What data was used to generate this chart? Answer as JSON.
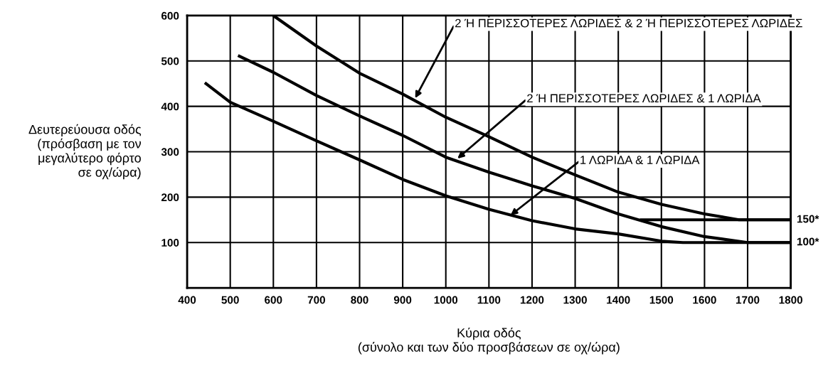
{
  "chart_data": {
    "type": "line",
    "xlabel": "Κύρια οδός\n(σύνολο και των δύο προσβάσεων σε οχ/ώρα)",
    "ylabel": "Δευτερεύουσα οδός\n(πρόσβαση με τον\nμεγαλύτερο φόρτο\nσε οχ/ώρα)",
    "xlim": [
      400,
      1800
    ],
    "xticks": [
      400,
      500,
      600,
      700,
      800,
      900,
      1000,
      1100,
      1200,
      1300,
      1400,
      1500,
      1600,
      1700,
      1800
    ],
    "ylim": [
      0,
      600
    ],
    "yticks": [
      100,
      200,
      300,
      400,
      500,
      600
    ],
    "grid": true,
    "marker": "none",
    "line_style": "solid",
    "series": [
      {
        "color": "#000000",
        "x": [
          600,
          700,
          800,
          900,
          1000,
          1100,
          1200,
          1300,
          1400,
          1500,
          1600,
          1680,
          1800
        ],
        "values": [
          600,
          533,
          473,
          427,
          376,
          333,
          288,
          249,
          211,
          184,
          163,
          150,
          150
        ]
      },
      {
        "color": "#000000",
        "x": [
          518,
          600,
          700,
          800,
          900,
          1000,
          1100,
          1200,
          1300,
          1400,
          1500,
          1600,
          1700,
          1800
        ],
        "values": [
          512,
          475,
          424,
          379,
          336,
          288,
          255,
          225,
          197,
          163,
          135,
          113,
          100,
          100
        ]
      },
      {
        "color": "#000000",
        "x": [
          441,
          500,
          600,
          700,
          800,
          900,
          1000,
          1100,
          1200,
          1300,
          1400,
          1500,
          1550,
          1800
        ],
        "values": [
          452,
          409,
          367,
          324,
          282,
          239,
          203,
          173,
          148,
          130,
          119,
          103,
          100,
          100
        ]
      },
      {
        "color": "#000000",
        "x": [
          1450,
          1800
        ],
        "values": [
          150,
          150
        ]
      }
    ],
    "annotations": [
      {
        "text": "2 Ή ΠΕΡΙΣΣΟΤΕΡΕΣ ΛΩΡΙΔΕΣ & 2 Ή ΠΕΡΙΣΣΟΤΕΡΕΣ ΛΩΡΙΔΕΣ",
        "x": 929,
        "y": 418
      },
      {
        "text": "2 Ή ΠΕΡΙΣΣΟΤΕΡΕΣ ΛΩΡΙΔΕΣ & 1 ΛΩΡΙΔΑ",
        "x": 1027,
        "y": 285
      },
      {
        "text": "1 ΛΩΡΙΔΑ & 1 ΛΩΡΙΔΑ",
        "x": 1150,
        "y": 160
      },
      {
        "text": "150*",
        "x": 1800,
        "y": 150
      },
      {
        "text": "100*",
        "x": 1800,
        "y": 100
      }
    ]
  }
}
